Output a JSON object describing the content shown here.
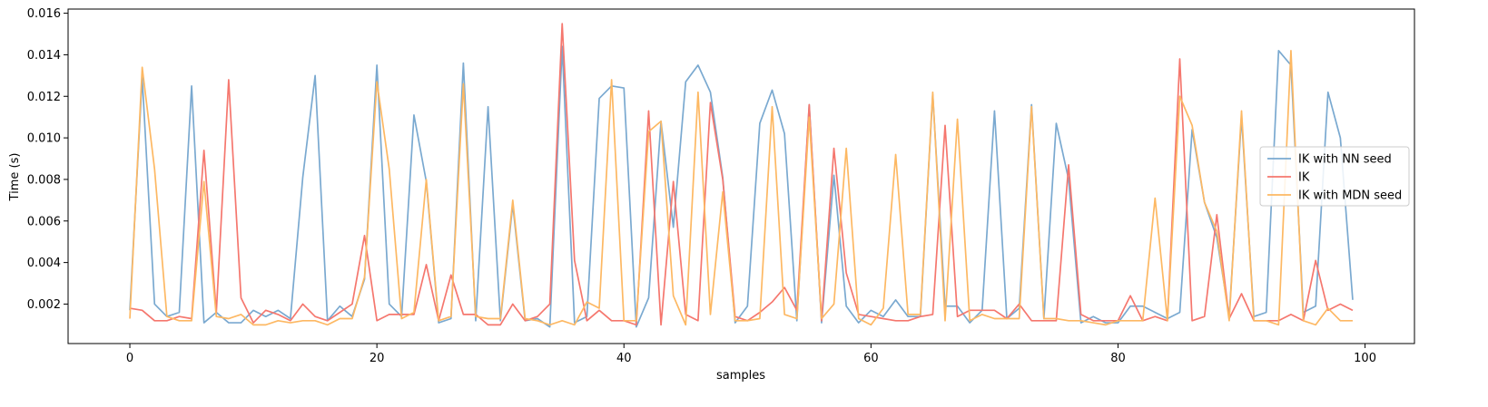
{
  "chart_data": {
    "type": "line",
    "xlabel": "samples",
    "ylabel": "Time (s)",
    "xlim": [
      -5,
      104
    ],
    "ylim": [
      0.0001,
      0.0162
    ],
    "xticks": [
      0,
      20,
      40,
      60,
      80,
      100
    ],
    "xtick_labels": [
      "0",
      "20",
      "40",
      "60",
      "80",
      "100"
    ],
    "yticks": [
      0.002,
      0.004,
      0.006,
      0.008,
      0.01,
      0.012,
      0.014,
      0.016
    ],
    "ytick_labels": [
      "0.002",
      "0.004",
      "0.006",
      "0.008",
      "0.010",
      "0.012",
      "0.014",
      "0.016"
    ],
    "grid": false,
    "legend_position": "right",
    "series": [
      {
        "name": "IK with NN seed",
        "color": "#7aa9d0",
        "values": [
          0.0017,
          0.0129,
          0.002,
          0.0014,
          0.0016,
          0.0125,
          0.0011,
          0.0016,
          0.0011,
          0.0011,
          0.0017,
          0.0014,
          0.0017,
          0.0013,
          0.0081,
          0.013,
          0.0012,
          0.0019,
          0.0014,
          0.0032,
          0.0135,
          0.002,
          0.0014,
          0.0111,
          0.0079,
          0.0011,
          0.0013,
          0.0136,
          0.0012,
          0.0115,
          0.0012,
          0.0068,
          0.0012,
          0.0013,
          0.0009,
          0.0144,
          0.0011,
          0.0014,
          0.0119,
          0.0125,
          0.0124,
          0.0009,
          0.0023,
          0.0108,
          0.0057,
          0.0127,
          0.0135,
          0.0122,
          0.0081,
          0.0011,
          0.0019,
          0.0107,
          0.0123,
          0.0102,
          0.0012,
          0.0116,
          0.0011,
          0.0082,
          0.0019,
          0.0011,
          0.0017,
          0.0014,
          0.0022,
          0.0014,
          0.0014,
          0.0121,
          0.0019,
          0.0019,
          0.0011,
          0.0017,
          0.0113,
          0.0013,
          0.0018,
          0.0116,
          0.0013,
          0.0107,
          0.008,
          0.0011,
          0.0014,
          0.0011,
          0.0011,
          0.0019,
          0.0019,
          0.0016,
          0.0013,
          0.0016,
          0.0104,
          0.0069,
          0.0052,
          0.0014,
          0.011,
          0.0014,
          0.0016,
          0.0142,
          0.0135,
          0.0016,
          0.0019,
          0.0122,
          0.01,
          0.0022
        ]
      },
      {
        "name": "IK",
        "color": "#f5776e",
        "values": [
          0.0018,
          0.0017,
          0.0012,
          0.0012,
          0.0014,
          0.0013,
          0.0094,
          0.0016,
          0.0128,
          0.0023,
          0.0011,
          0.0017,
          0.0015,
          0.0012,
          0.002,
          0.0014,
          0.0012,
          0.0016,
          0.002,
          0.0053,
          0.0012,
          0.0015,
          0.0015,
          0.0015,
          0.0039,
          0.0012,
          0.0034,
          0.0015,
          0.0015,
          0.001,
          0.001,
          0.002,
          0.0012,
          0.0014,
          0.002,
          0.0155,
          0.0041,
          0.0012,
          0.0017,
          0.0012,
          0.0012,
          0.001,
          0.0113,
          0.001,
          0.0079,
          0.0015,
          0.0012,
          0.0117,
          0.008,
          0.0014,
          0.0012,
          0.0016,
          0.0021,
          0.0028,
          0.0017,
          0.0116,
          0.0012,
          0.0095,
          0.0035,
          0.0015,
          0.0014,
          0.0013,
          0.0012,
          0.0012,
          0.0014,
          0.0015,
          0.0106,
          0.0014,
          0.0017,
          0.0017,
          0.0017,
          0.0013,
          0.002,
          0.0012,
          0.0012,
          0.0012,
          0.0087,
          0.0015,
          0.0012,
          0.0012,
          0.0012,
          0.0024,
          0.0012,
          0.0014,
          0.0012,
          0.0138,
          0.0012,
          0.0014,
          0.0063,
          0.0013,
          0.0025,
          0.0012,
          0.0012,
          0.0012,
          0.0015,
          0.0012,
          0.0041,
          0.0017,
          0.002,
          0.0017
        ]
      },
      {
        "name": "IK with MDN seed",
        "color": "#fdb863",
        "values": [
          0.0013,
          0.0134,
          0.0085,
          0.0014,
          0.0012,
          0.0012,
          0.0079,
          0.0014,
          0.0013,
          0.0015,
          0.001,
          0.001,
          0.0012,
          0.0011,
          0.0012,
          0.0012,
          0.001,
          0.0013,
          0.0013,
          0.0033,
          0.0127,
          0.0085,
          0.0013,
          0.0016,
          0.008,
          0.0012,
          0.0014,
          0.0126,
          0.0014,
          0.0013,
          0.0013,
          0.007,
          0.0013,
          0.0012,
          0.001,
          0.0012,
          0.001,
          0.0021,
          0.0018,
          0.0128,
          0.0012,
          0.0012,
          0.0103,
          0.0108,
          0.0024,
          0.001,
          0.0122,
          0.0015,
          0.0074,
          0.0012,
          0.0012,
          0.0013,
          0.0115,
          0.0015,
          0.0013,
          0.011,
          0.0013,
          0.002,
          0.0095,
          0.0013,
          0.001,
          0.0018,
          0.0092,
          0.0015,
          0.0015,
          0.0122,
          0.0012,
          0.0109,
          0.0012,
          0.0015,
          0.0013,
          0.0013,
          0.0013,
          0.0115,
          0.0013,
          0.0013,
          0.0012,
          0.0012,
          0.0011,
          0.001,
          0.0012,
          0.0012,
          0.0012,
          0.0071,
          0.0012,
          0.012,
          0.0106,
          0.0069,
          0.0055,
          0.0012,
          0.0113,
          0.0012,
          0.0012,
          0.001,
          0.0142,
          0.0012,
          0.001,
          0.0018,
          0.0012,
          0.0012
        ]
      }
    ]
  }
}
